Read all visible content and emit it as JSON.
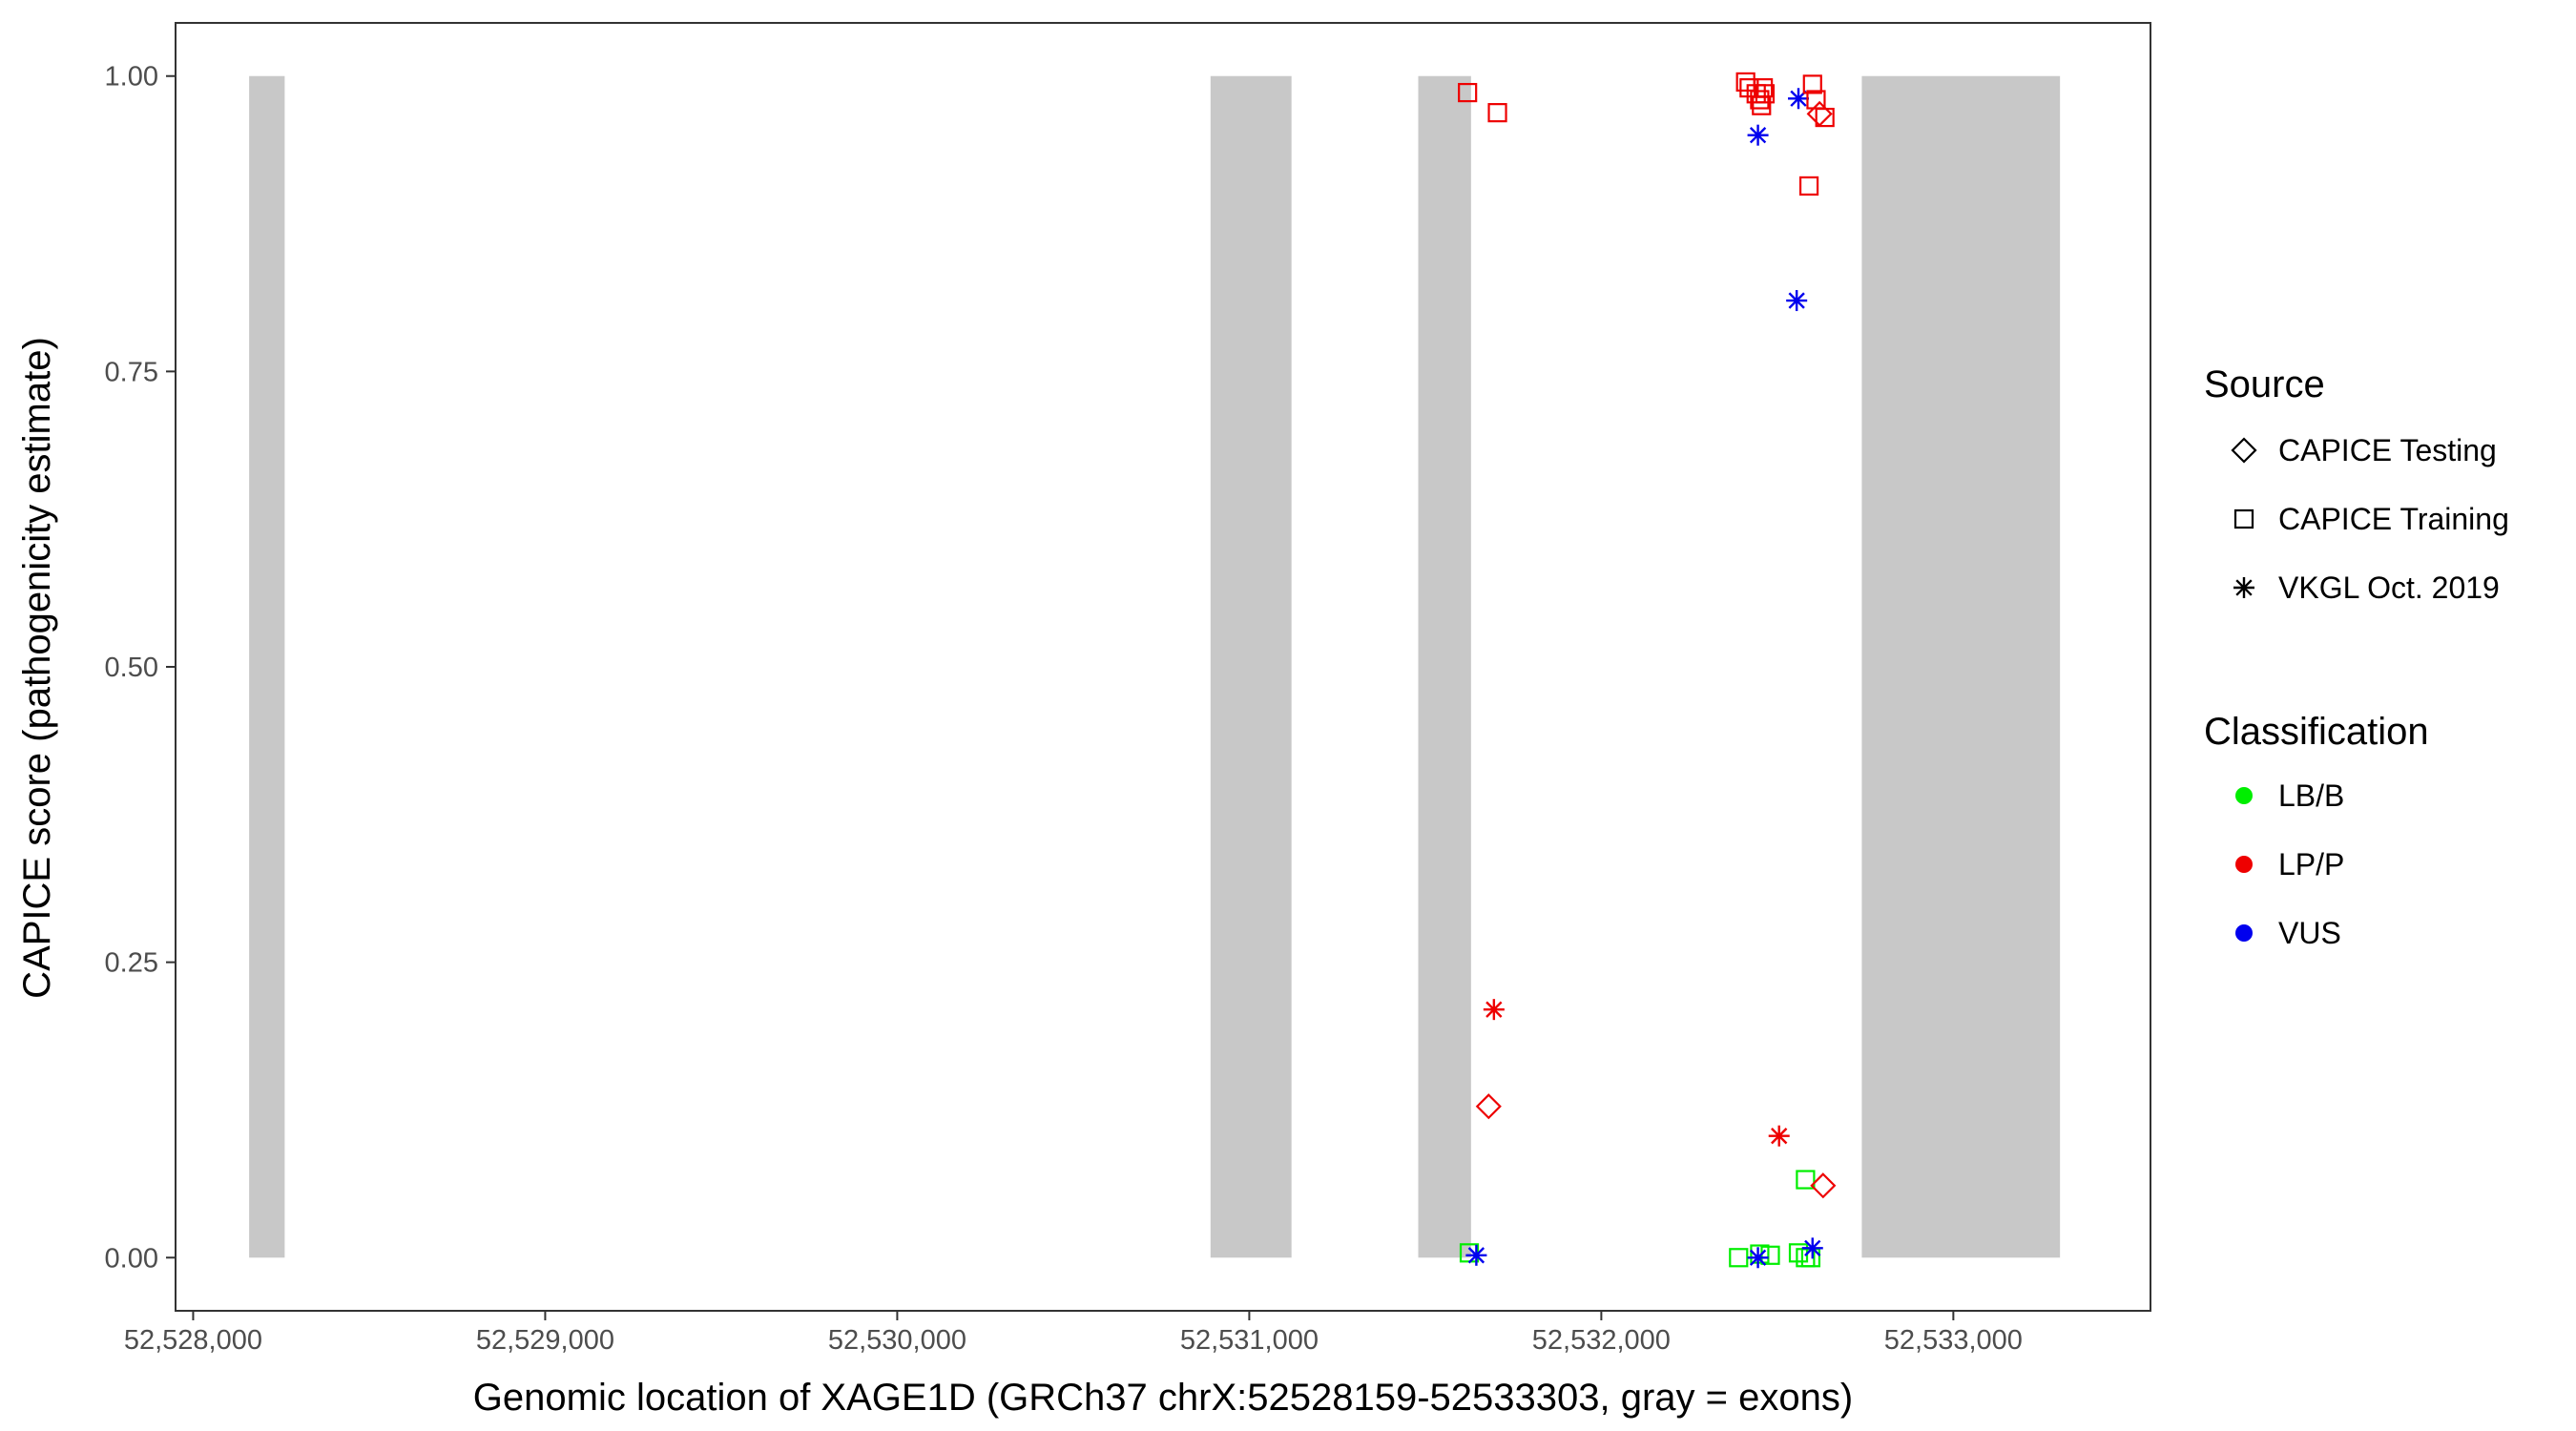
{
  "chart_data": {
    "type": "scatter",
    "title": "",
    "xlabel": "Genomic location of XAGE1D (GRCh37 chrX:52528159-52533303, gray = exons)",
    "ylabel": "CAPICE score (pathogenicity estimate)",
    "xlim": [
      52527950,
      52533560
    ],
    "ylim": [
      -0.045,
      1.045
    ],
    "x_ticks": [
      52528000,
      52529000,
      52530000,
      52531000,
      52532000,
      52533000
    ],
    "x_tick_labels": [
      "52,528,000",
      "52,529,000",
      "52,530,000",
      "52,531,000",
      "52,532,000",
      "52,533,000"
    ],
    "y_ticks": [
      0,
      0.25,
      0.5,
      0.75,
      1
    ],
    "y_tick_labels": [
      "0.00",
      "0.25",
      "0.50",
      "0.75",
      "1.00"
    ],
    "grid": false,
    "legend_position": "right",
    "exon_color": "#c8c8c8",
    "exons": [
      [
        52528159,
        52528260
      ],
      [
        52530890,
        52531120
      ],
      [
        52531480,
        52531630
      ],
      [
        52532740,
        52533303
      ]
    ],
    "legend": {
      "source": {
        "title": "Source",
        "items": [
          {
            "label": "CAPICE Testing",
            "shape": "diamond"
          },
          {
            "label": "CAPICE Training",
            "shape": "square"
          },
          {
            "label": "VKGL Oct. 2019",
            "shape": "asterisk"
          }
        ]
      },
      "classification": {
        "title": "Classification",
        "items": [
          {
            "label": "LB/B",
            "color": "#00ee00"
          },
          {
            "label": "LP/P",
            "color": "#ee0000"
          },
          {
            "label": "VUS",
            "color": "#0000ee"
          }
        ]
      }
    },
    "points": [
      {
        "x": 52531620,
        "y": 0.986,
        "source": "square",
        "class": "LP/P"
      },
      {
        "x": 52531705,
        "y": 0.969,
        "source": "square",
        "class": "LP/P"
      },
      {
        "x": 52531695,
        "y": 0.21,
        "source": "asterisk",
        "class": "LP/P"
      },
      {
        "x": 52531680,
        "y": 0.128,
        "source": "diamond",
        "class": "LP/P"
      },
      {
        "x": 52531625,
        "y": 0.004,
        "source": "square",
        "class": "LB/B"
      },
      {
        "x": 52531645,
        "y": 0.002,
        "source": "asterisk",
        "class": "VUS"
      },
      {
        "x": 52532410,
        "y": 0.995,
        "source": "square",
        "class": "LP/P"
      },
      {
        "x": 52532420,
        "y": 0.99,
        "source": "square",
        "class": "LP/P"
      },
      {
        "x": 52532440,
        "y": 0.985,
        "source": "square",
        "class": "LP/P"
      },
      {
        "x": 52532450,
        "y": 0.98,
        "source": "square",
        "class": "LP/P"
      },
      {
        "x": 52532455,
        "y": 0.975,
        "source": "square",
        "class": "LP/P"
      },
      {
        "x": 52532460,
        "y": 0.99,
        "source": "square",
        "class": "LP/P"
      },
      {
        "x": 52532465,
        "y": 0.985,
        "source": "square",
        "class": "LP/P"
      },
      {
        "x": 52532445,
        "y": 0.95,
        "source": "asterisk",
        "class": "VUS"
      },
      {
        "x": 52532560,
        "y": 0.981,
        "source": "asterisk",
        "class": "VUS"
      },
      {
        "x": 52532600,
        "y": 0.993,
        "source": "square",
        "class": "LP/P"
      },
      {
        "x": 52532610,
        "y": 0.98,
        "source": "square",
        "class": "LP/P"
      },
      {
        "x": 52532620,
        "y": 0.968,
        "source": "diamond",
        "class": "LP/P"
      },
      {
        "x": 52532635,
        "y": 0.965,
        "source": "square",
        "class": "LP/P"
      },
      {
        "x": 52532590,
        "y": 0.907,
        "source": "square",
        "class": "LP/P"
      },
      {
        "x": 52532555,
        "y": 0.81,
        "source": "asterisk",
        "class": "VUS"
      },
      {
        "x": 52532505,
        "y": 0.103,
        "source": "asterisk",
        "class": "LP/P"
      },
      {
        "x": 52532580,
        "y": 0.066,
        "source": "square",
        "class": "LB/B"
      },
      {
        "x": 52532630,
        "y": 0.061,
        "source": "diamond",
        "class": "LP/P"
      },
      {
        "x": 52532390,
        "y": 0.0,
        "source": "square",
        "class": "LB/B"
      },
      {
        "x": 52532450,
        "y": 0.003,
        "source": "square",
        "class": "LB/B"
      },
      {
        "x": 52532480,
        "y": 0.002,
        "source": "square",
        "class": "LB/B"
      },
      {
        "x": 52532445,
        "y": 0.0,
        "source": "asterisk",
        "class": "VUS"
      },
      {
        "x": 52532560,
        "y": 0.004,
        "source": "square",
        "class": "LB/B"
      },
      {
        "x": 52532580,
        "y": 0.0,
        "source": "square",
        "class": "LB/B"
      },
      {
        "x": 52532595,
        "y": 0.0,
        "source": "square",
        "class": "LB/B"
      },
      {
        "x": 52532600,
        "y": 0.008,
        "source": "asterisk",
        "class": "VUS"
      }
    ]
  }
}
